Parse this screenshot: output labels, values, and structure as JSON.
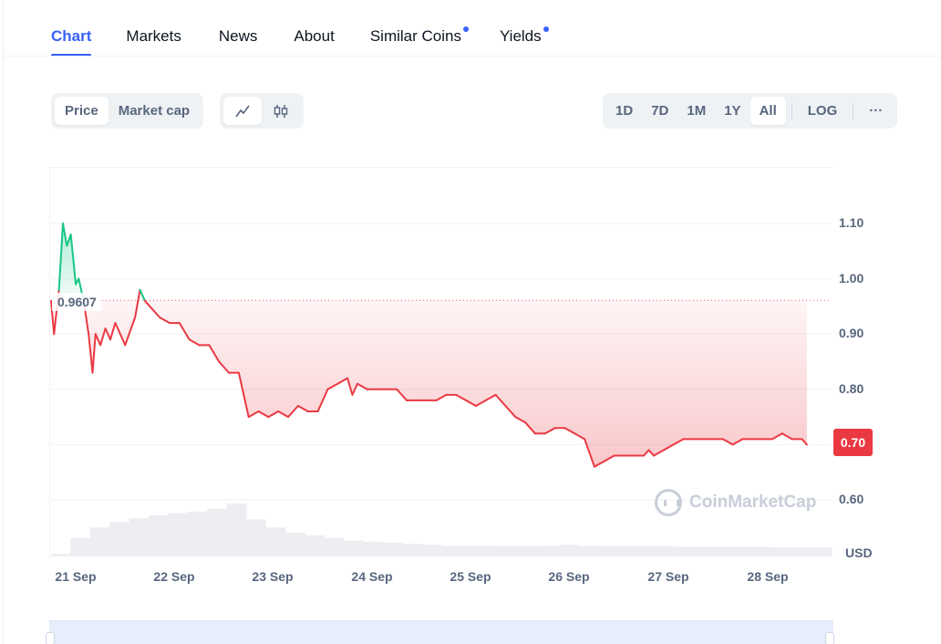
{
  "tabs": [
    {
      "label": "Chart",
      "active": true,
      "dot": false
    },
    {
      "label": "Markets",
      "active": false,
      "dot": false
    },
    {
      "label": "News",
      "active": false,
      "dot": false
    },
    {
      "label": "About",
      "active": false,
      "dot": false
    },
    {
      "label": "Similar Coins",
      "active": false,
      "dot": true
    },
    {
      "label": "Yields",
      "active": false,
      "dot": true
    }
  ],
  "metric_toggle": {
    "price_label": "Price",
    "market_cap_label": "Market cap",
    "selected": "Price"
  },
  "chart_style_toggle": {
    "selected": "line",
    "icons": [
      "line-chart-icon",
      "candlestick-icon"
    ]
  },
  "range_toggle": {
    "options": [
      "1D",
      "7D",
      "1M",
      "1Y",
      "All"
    ],
    "selected": "All",
    "log_label": "LOG",
    "more_label": "···"
  },
  "colors": {
    "accent": "#3861fb",
    "up": "#16c784",
    "down": "#ea3943",
    "text_muted": "#58667e"
  },
  "watermark": "CoinMarketCap",
  "chart_data": {
    "type": "area",
    "currency": "USD",
    "x_labels": [
      "21 Sep",
      "22 Sep",
      "23 Sep",
      "24 Sep",
      "25 Sep",
      "26 Sep",
      "27 Sep",
      "28 Sep"
    ],
    "y_ticks": [
      "1.10",
      "1.00",
      "0.90",
      "0.80",
      "0.70",
      "0.60"
    ],
    "ylim": [
      0.6,
      1.16
    ],
    "reference_price": "0.9607",
    "reference_value": 0.9607,
    "current_price": "0.70",
    "grid": true,
    "series": [
      {
        "values_x_days_from_start": [
          0.0,
          0.03,
          0.08,
          0.12,
          0.16,
          0.2,
          0.25,
          0.28,
          0.33,
          0.38,
          0.42,
          0.45,
          0.5,
          0.55,
          0.6,
          0.65,
          0.75,
          0.85,
          0.9,
          0.95,
          1.0,
          1.1,
          1.2,
          1.3,
          1.4,
          1.5,
          1.6,
          1.7,
          1.8,
          1.9,
          2.0,
          2.1,
          2.2,
          2.3,
          2.4,
          2.5,
          2.6,
          2.7,
          2.8,
          2.9,
          3.0,
          3.05,
          3.1,
          3.2,
          3.3,
          3.4,
          3.5,
          3.6,
          3.7,
          3.8,
          3.9,
          4.0,
          4.1,
          4.2,
          4.3,
          4.4,
          4.5,
          4.6,
          4.7,
          4.8,
          4.9,
          5.0,
          5.1,
          5.2,
          5.3,
          5.4,
          5.5,
          5.6,
          5.7,
          5.8,
          5.9,
          6.0,
          6.05,
          6.1,
          6.2,
          6.3,
          6.4,
          6.5,
          6.6,
          6.7,
          6.8,
          6.9,
          7.0,
          7.1,
          7.2,
          7.3,
          7.4,
          7.5,
          7.6,
          7.65
        ],
        "values": [
          0.96,
          0.9,
          0.98,
          1.1,
          1.06,
          1.08,
          0.99,
          1.0,
          0.96,
          0.9,
          0.83,
          0.9,
          0.88,
          0.91,
          0.89,
          0.92,
          0.88,
          0.93,
          0.98,
          0.96,
          0.95,
          0.93,
          0.92,
          0.92,
          0.89,
          0.88,
          0.88,
          0.85,
          0.83,
          0.83,
          0.75,
          0.76,
          0.75,
          0.76,
          0.75,
          0.77,
          0.76,
          0.76,
          0.8,
          0.81,
          0.82,
          0.79,
          0.81,
          0.8,
          0.8,
          0.8,
          0.8,
          0.78,
          0.78,
          0.78,
          0.78,
          0.79,
          0.79,
          0.78,
          0.77,
          0.78,
          0.79,
          0.77,
          0.75,
          0.74,
          0.72,
          0.72,
          0.73,
          0.73,
          0.72,
          0.71,
          0.66,
          0.67,
          0.68,
          0.68,
          0.68,
          0.68,
          0.69,
          0.68,
          0.69,
          0.7,
          0.71,
          0.71,
          0.71,
          0.71,
          0.71,
          0.7,
          0.71,
          0.71,
          0.71,
          0.71,
          0.72,
          0.71,
          0.71,
          0.7
        ]
      }
    ],
    "volume_relative": [
      0.05,
      0.35,
      0.55,
      0.65,
      0.72,
      0.78,
      0.82,
      0.85,
      0.9,
      1.0,
      0.7,
      0.55,
      0.45,
      0.4,
      0.35,
      0.3,
      0.28,
      0.26,
      0.24,
      0.22,
      0.2,
      0.2,
      0.2,
      0.19,
      0.19,
      0.2,
      0.22,
      0.2,
      0.19,
      0.19,
      0.19,
      0.19,
      0.18,
      0.18,
      0.18,
      0.18,
      0.18,
      0.17,
      0.17,
      0.17
    ]
  }
}
